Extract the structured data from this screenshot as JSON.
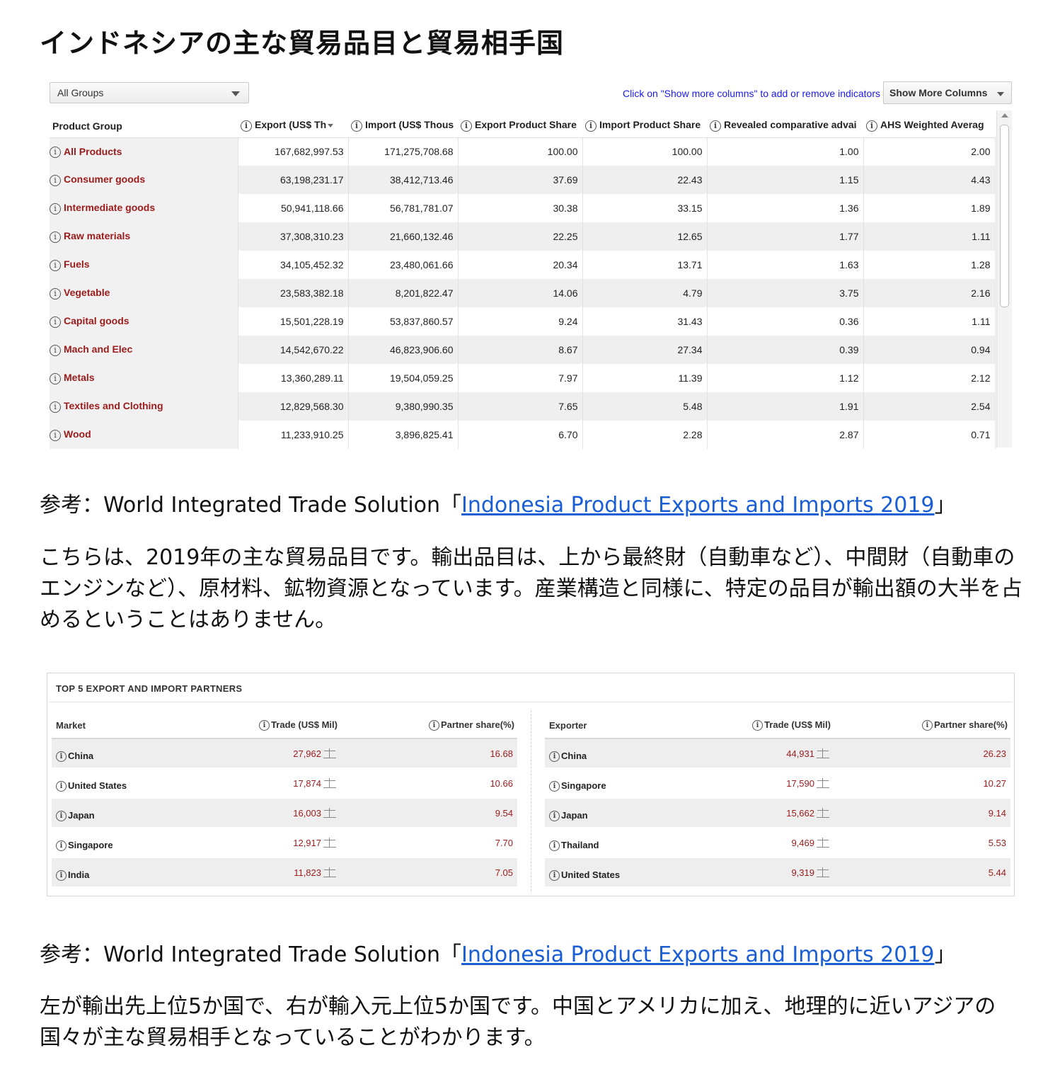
{
  "info_glyph": "i",
  "page_title": "インドネシアの主な貿易品目と貿易相手国",
  "product_table": {
    "group_select": "All Groups",
    "click_hint": "Click on \"Show more columns\" to add or remove indicators",
    "more_columns_button": "Show More Columns",
    "columns": [
      "Product Group",
      "Export (US$ Th",
      "Import (US$ Thous",
      "Export Product Share",
      "Import Product Share",
      "Revealed comparative advai",
      "AHS Weighted Averag"
    ],
    "rows": [
      {
        "name": "All Products",
        "export": "167,682,997.53",
        "import": "171,275,708.68",
        "export_share": "100.00",
        "import_share": "100.00",
        "rca": "1.00",
        "ahs": "2.00"
      },
      {
        "name": "Consumer goods",
        "export": "63,198,231.17",
        "import": "38,412,713.46",
        "export_share": "37.69",
        "import_share": "22.43",
        "rca": "1.15",
        "ahs": "4.43"
      },
      {
        "name": "Intermediate goods",
        "export": "50,941,118.66",
        "import": "56,781,781.07",
        "export_share": "30.38",
        "import_share": "33.15",
        "rca": "1.36",
        "ahs": "1.89"
      },
      {
        "name": "Raw materials",
        "export": "37,308,310.23",
        "import": "21,660,132.46",
        "export_share": "22.25",
        "import_share": "12.65",
        "rca": "1.77",
        "ahs": "1.11"
      },
      {
        "name": "Fuels",
        "export": "34,105,452.32",
        "import": "23,480,061.66",
        "export_share": "20.34",
        "import_share": "13.71",
        "rca": "1.63",
        "ahs": "1.28"
      },
      {
        "name": "Vegetable",
        "export": "23,583,382.18",
        "import": "8,201,822.47",
        "export_share": "14.06",
        "import_share": "4.79",
        "rca": "3.75",
        "ahs": "2.16"
      },
      {
        "name": "Capital goods",
        "export": "15,501,228.19",
        "import": "53,837,860.57",
        "export_share": "9.24",
        "import_share": "31.43",
        "rca": "0.36",
        "ahs": "1.11"
      },
      {
        "name": "Mach and Elec",
        "export": "14,542,670.22",
        "import": "46,823,906.60",
        "export_share": "8.67",
        "import_share": "27.34",
        "rca": "0.39",
        "ahs": "0.94"
      },
      {
        "name": "Metals",
        "export": "13,360,289.11",
        "import": "19,504,059.25",
        "export_share": "7.97",
        "import_share": "11.39",
        "rca": "1.12",
        "ahs": "2.12"
      },
      {
        "name": "Textiles and Clothing",
        "export": "12,829,568.30",
        "import": "9,380,990.35",
        "export_share": "7.65",
        "import_share": "5.48",
        "rca": "1.91",
        "ahs": "2.54"
      },
      {
        "name": "Wood",
        "export": "11,233,910.25",
        "import": "3,896,825.41",
        "export_share": "6.70",
        "import_share": "2.28",
        "rca": "2.87",
        "ahs": "0.71"
      }
    ]
  },
  "ref1": {
    "prefix": "参考：World Integrated Trade Solution「",
    "link": "Indonesia Product Exports and Imports 2019",
    "suffix": "」"
  },
  "paragraph1": "こちらは、2019年の主な貿易品目です。輸出品目は、上から最終財（自動車など）、中間財（自動車のエンジンなど）、原材料、鉱物資源となっています。産業構造と同様に、特定の品目が輸出額の大半を占めるということはありません。",
  "partners": {
    "title": "TOP 5 EXPORT AND IMPORT PARTNERS",
    "export_table": {
      "columns": [
        "Market",
        "Trade (US$ Mil)",
        "Partner share(%)"
      ],
      "rows": [
        {
          "country": "China",
          "trade": "27,962",
          "share": "16.68"
        },
        {
          "country": "United States",
          "trade": "17,874",
          "share": "10.66"
        },
        {
          "country": "Japan",
          "trade": "16,003",
          "share": "9.54"
        },
        {
          "country": "Singapore",
          "trade": "12,917",
          "share": "7.70"
        },
        {
          "country": "India",
          "trade": "11,823",
          "share": "7.05"
        }
      ]
    },
    "import_table": {
      "columns": [
        "Exporter",
        "Trade (US$ Mil)",
        "Partner share(%)"
      ],
      "rows": [
        {
          "country": "China",
          "trade": "44,931",
          "share": "26.23"
        },
        {
          "country": "Singapore",
          "trade": "17,590",
          "share": "10.27"
        },
        {
          "country": "Japan",
          "trade": "15,662",
          "share": "9.14"
        },
        {
          "country": "Thailand",
          "trade": "9,469",
          "share": "5.53"
        },
        {
          "country": "United States",
          "trade": "9,319",
          "share": "5.44"
        }
      ]
    }
  },
  "ref2": {
    "prefix": "参考：World Integrated Trade Solution「",
    "link": "Indonesia Product Exports and Imports 2019",
    "suffix": "」"
  },
  "paragraph2": "左が輸出先上位5か国で、右が輸入元上位5か国です。中国とアメリカに加え、地理的に近いアジアの国々が主な貿易相手となっていることがわかります。"
}
